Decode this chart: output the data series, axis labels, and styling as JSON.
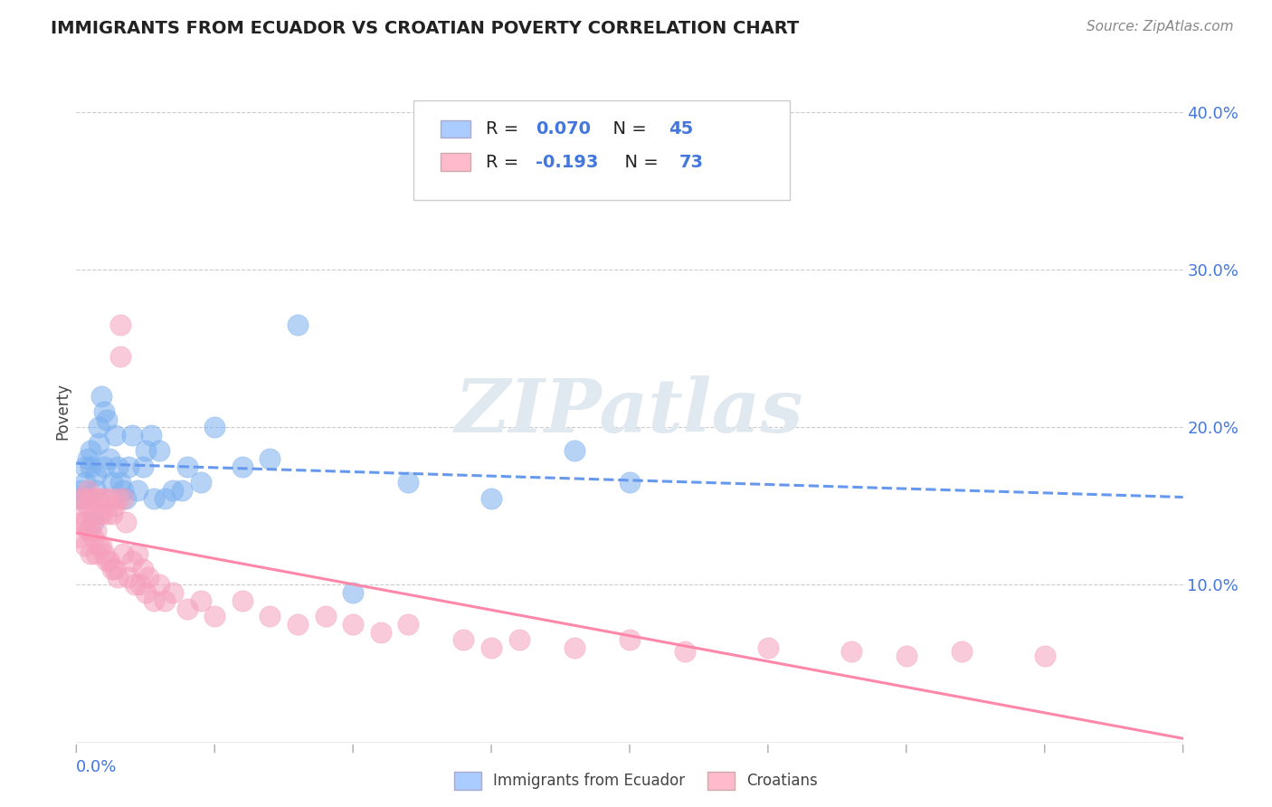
{
  "title": "IMMIGRANTS FROM ECUADOR VS CROATIAN POVERTY CORRELATION CHART",
  "source": "Source: ZipAtlas.com",
  "ylabel": "Poverty",
  "xlim": [
    0.0,
    0.4
  ],
  "ylim": [
    0.0,
    0.42
  ],
  "yticks": [
    0.0,
    0.1,
    0.2,
    0.3,
    0.4
  ],
  "gridline_color": "#cccccc",
  "background_color": "#ffffff",
  "blue_color": "#6699ee",
  "pink_color": "#ff88aa",
  "blue_scatter": "#7ab0f0",
  "pink_scatter": "#f5a0bc",
  "series": [
    {
      "name": "Immigrants from Ecuador",
      "R": 0.07,
      "N": 45,
      "x": [
        0.001,
        0.002,
        0.003,
        0.003,
        0.004,
        0.005,
        0.005,
        0.006,
        0.007,
        0.007,
        0.008,
        0.008,
        0.009,
        0.01,
        0.01,
        0.011,
        0.012,
        0.013,
        0.014,
        0.015,
        0.016,
        0.017,
        0.018,
        0.019,
        0.02,
        0.022,
        0.024,
        0.025,
        0.027,
        0.028,
        0.03,
        0.032,
        0.035,
        0.038,
        0.04,
        0.045,
        0.05,
        0.06,
        0.07,
        0.08,
        0.1,
        0.12,
        0.15,
        0.18,
        0.2
      ],
      "y": [
        0.155,
        0.16,
        0.165,
        0.175,
        0.18,
        0.175,
        0.185,
        0.14,
        0.17,
        0.16,
        0.19,
        0.2,
        0.22,
        0.21,
        0.175,
        0.205,
        0.18,
        0.165,
        0.195,
        0.175,
        0.165,
        0.16,
        0.155,
        0.175,
        0.195,
        0.16,
        0.175,
        0.185,
        0.195,
        0.155,
        0.185,
        0.155,
        0.16,
        0.16,
        0.175,
        0.165,
        0.2,
        0.175,
        0.18,
        0.265,
        0.095,
        0.165,
        0.155,
        0.185,
        0.165
      ]
    },
    {
      "name": "Croatians",
      "R": -0.193,
      "N": 73,
      "x": [
        0.001,
        0.001,
        0.002,
        0.002,
        0.003,
        0.003,
        0.003,
        0.004,
        0.004,
        0.004,
        0.005,
        0.005,
        0.005,
        0.006,
        0.006,
        0.007,
        0.007,
        0.007,
        0.008,
        0.008,
        0.008,
        0.009,
        0.009,
        0.01,
        0.01,
        0.011,
        0.011,
        0.012,
        0.012,
        0.013,
        0.013,
        0.014,
        0.014,
        0.015,
        0.015,
        0.016,
        0.016,
        0.017,
        0.017,
        0.018,
        0.019,
        0.02,
        0.021,
        0.022,
        0.023,
        0.024,
        0.025,
        0.026,
        0.028,
        0.03,
        0.032,
        0.035,
        0.04,
        0.045,
        0.05,
        0.06,
        0.07,
        0.08,
        0.09,
        0.1,
        0.11,
        0.12,
        0.14,
        0.15,
        0.16,
        0.18,
        0.2,
        0.22,
        0.25,
        0.28,
        0.3,
        0.32,
        0.35
      ],
      "y": [
        0.13,
        0.145,
        0.14,
        0.155,
        0.125,
        0.14,
        0.155,
        0.135,
        0.15,
        0.16,
        0.12,
        0.135,
        0.155,
        0.13,
        0.145,
        0.12,
        0.135,
        0.155,
        0.125,
        0.145,
        0.155,
        0.125,
        0.145,
        0.12,
        0.155,
        0.115,
        0.145,
        0.115,
        0.155,
        0.11,
        0.145,
        0.11,
        0.15,
        0.105,
        0.155,
        0.245,
        0.265,
        0.155,
        0.12,
        0.14,
        0.105,
        0.115,
        0.1,
        0.12,
        0.1,
        0.11,
        0.095,
        0.105,
        0.09,
        0.1,
        0.09,
        0.095,
        0.085,
        0.09,
        0.08,
        0.09,
        0.08,
        0.075,
        0.08,
        0.075,
        0.07,
        0.075,
        0.065,
        0.06,
        0.065,
        0.06,
        0.065,
        0.058,
        0.06,
        0.058,
        0.055,
        0.058,
        0.055
      ]
    }
  ],
  "title_fontsize": 14,
  "axis_label_fontsize": 12,
  "tick_fontsize": 13,
  "source_fontsize": 11,
  "legend_fontsize": 14
}
